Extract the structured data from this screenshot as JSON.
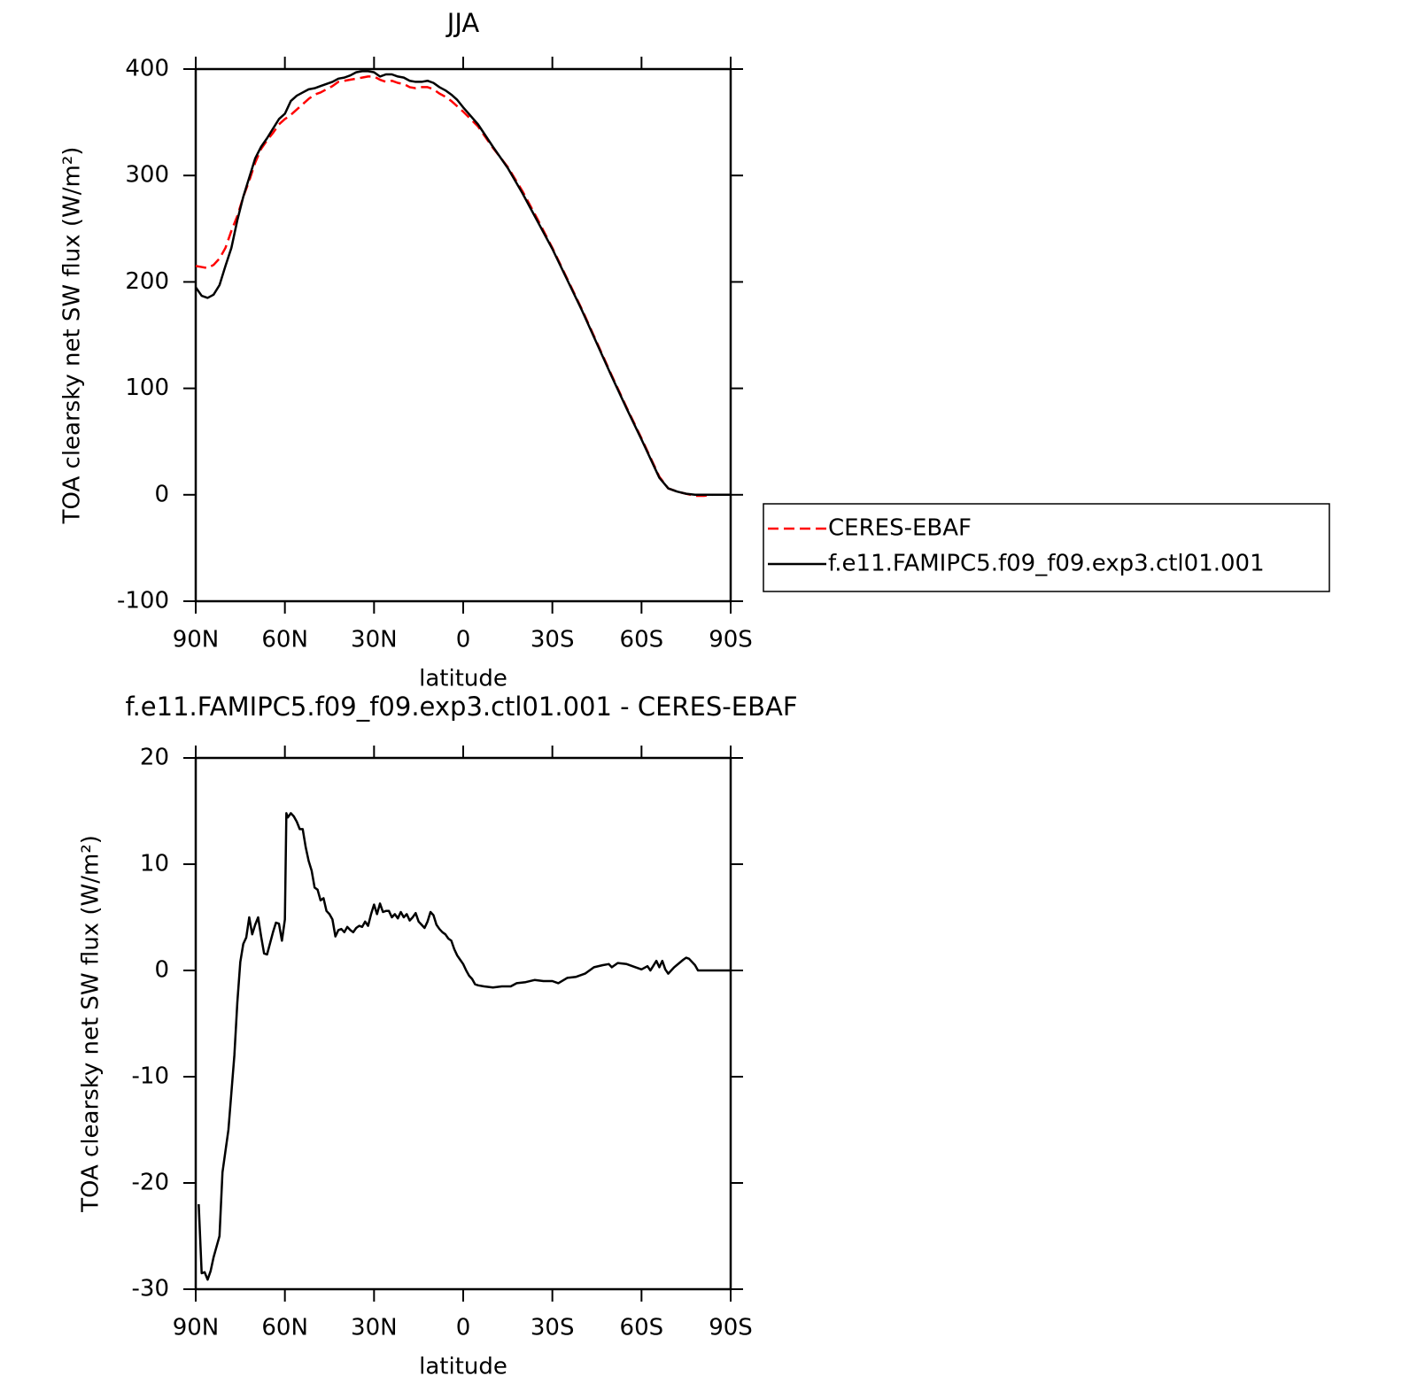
{
  "chart_data": [
    {
      "type": "line",
      "title": "JJA",
      "xlabel": "latitude",
      "ylabel": "TOA clearsky net SW flux (W/m²)",
      "x": [
        90,
        88,
        86,
        84,
        82,
        80,
        78,
        76,
        74,
        72,
        70,
        68,
        66,
        64,
        62,
        60,
        58,
        56,
        54,
        52,
        50,
        48,
        46,
        44,
        42,
        40,
        38,
        36,
        34,
        32,
        30,
        28,
        26,
        24,
        22,
        20,
        18,
        16,
        14,
        12,
        10,
        8,
        6,
        4,
        2,
        0,
        -5,
        -10,
        -15,
        -20,
        -25,
        -30,
        -35,
        -40,
        -45,
        -50,
        -55,
        -60,
        -63,
        -66,
        -69,
        -72,
        -75,
        -78,
        -81,
        -84,
        -87,
        -90
      ],
      "series": [
        {
          "name": "CERES-EBAF",
          "color": "#ff0000",
          "style": "dashed",
          "values": [
            215,
            214,
            213,
            216,
            222,
            232,
            248,
            262,
            280,
            295,
            312,
            325,
            333,
            340,
            348,
            353,
            357,
            362,
            367,
            372,
            376,
            378,
            381,
            384,
            388,
            389,
            390,
            391,
            392,
            393,
            393,
            390,
            388,
            389,
            387,
            386,
            383,
            382,
            383,
            383,
            381,
            377,
            374,
            370,
            365,
            360,
            346,
            326,
            308,
            285,
            259,
            232,
            203,
            174,
            143,
            112,
            82,
            53,
            35,
            17,
            6,
            3,
            1,
            -1,
            -1,
            0,
            0,
            0
          ]
        },
        {
          "name": "f.e11.FAMIPC5.f09_f09.exp3.ctl01.001",
          "color": "#000000",
          "style": "solid",
          "values": [
            195,
            187,
            185,
            188,
            197,
            215,
            232,
            258,
            280,
            298,
            316,
            327,
            335,
            344,
            353,
            358,
            370,
            375,
            378,
            381,
            382,
            384,
            386,
            388,
            391,
            392,
            394,
            397,
            398,
            398,
            397,
            393,
            395,
            395,
            393,
            392,
            389,
            388,
            388,
            389,
            387,
            383,
            380,
            376,
            371,
            364,
            348,
            327,
            307,
            283,
            257,
            231,
            202,
            173,
            142,
            111,
            81,
            52,
            34,
            16,
            6,
            3,
            1,
            0,
            0,
            0,
            0,
            0
          ]
        }
      ],
      "xlim": [
        90,
        -90
      ],
      "xticks": [
        {
          "value": 90,
          "label": "90N"
        },
        {
          "value": 60,
          "label": "60N"
        },
        {
          "value": 30,
          "label": "30N"
        },
        0,
        {
          "value": -30,
          "label": "30S"
        },
        {
          "value": -60,
          "label": "60S"
        },
        {
          "value": -90,
          "label": "90S"
        }
      ],
      "ylim": [
        -100,
        400
      ],
      "yticks": [
        -100,
        0,
        100,
        200,
        300,
        400
      ],
      "legend": "right"
    },
    {
      "type": "line",
      "title": "f.e11.FAMIPC5.f09_f09.exp3.ctl01.001 - CERES-EBAF",
      "xlabel": "latitude",
      "ylabel": "TOA clearsky net SW flux (W/m²)",
      "x": [
        89,
        88,
        87,
        86,
        85,
        84,
        82,
        81,
        79,
        77,
        76,
        75,
        74,
        73,
        72,
        71,
        70,
        69,
        68,
        67,
        66,
        64,
        63,
        62,
        61,
        60,
        59.5,
        59,
        58,
        57,
        56,
        55,
        54,
        53,
        52,
        51,
        50,
        49,
        48,
        47,
        46,
        45,
        44,
        43,
        42,
        41,
        40,
        39,
        38,
        37,
        36,
        35,
        34,
        33,
        32,
        31,
        30,
        29,
        28,
        27,
        26,
        25,
        24,
        23,
        22,
        21,
        20,
        19,
        18,
        17,
        16,
        15,
        14,
        13,
        12,
        11,
        10,
        9,
        8,
        7,
        6,
        5,
        4,
        3,
        2,
        1,
        0,
        -1,
        -2,
        -3,
        -4,
        -5,
        -7,
        -10,
        -13,
        -16,
        -18,
        -21,
        -24,
        -27,
        -30,
        -32,
        -35,
        -38,
        -41,
        -44,
        -47,
        -49,
        -50,
        -52,
        -55,
        -58,
        -60,
        -62,
        -63,
        -65,
        -66,
        -67,
        -68,
        -69,
        -71,
        -74,
        -75,
        -76,
        -78,
        -79,
        -82,
        -86,
        -90
      ],
      "values": [
        -22,
        -28.5,
        -28.4,
        -29.1,
        -28.3,
        -27,
        -25,
        -19,
        -15,
        -8,
        -3,
        0.8,
        2.5,
        3.1,
        5,
        3.4,
        4.3,
        5,
        3.2,
        1.6,
        1.5,
        3.6,
        4.5,
        4.4,
        2.8,
        4.8,
        14.8,
        14.4,
        14.8,
        14.5,
        14,
        13.3,
        13.3,
        11.6,
        10.3,
        9.4,
        7.8,
        7.6,
        6.6,
        6.8,
        5.6,
        5.3,
        4.8,
        3.2,
        3.8,
        3.9,
        3.6,
        4.1,
        3.8,
        3.6,
        4,
        4.2,
        4.1,
        4.6,
        4.2,
        5.3,
        6.2,
        5.3,
        6.3,
        5.5,
        5.6,
        5.6,
        5,
        5.3,
        4.9,
        5.5,
        5,
        5.3,
        4.7,
        5,
        5.4,
        4.6,
        4.3,
        4,
        4.6,
        5.5,
        5.2,
        4.3,
        3.9,
        3.6,
        3.4,
        3,
        2.8,
        2,
        1.4,
        1,
        0.6,
        0,
        -0.5,
        -0.8,
        -1.3,
        -1.4,
        -1.5,
        -1.6,
        -1.5,
        -1.5,
        -1.2,
        -1.1,
        -0.9,
        -1,
        -1,
        -1.2,
        -0.7,
        -0.6,
        -0.3,
        0.3,
        0.5,
        0.6,
        0.3,
        0.7,
        0.6,
        0.3,
        0.1,
        0.4,
        0,
        0.9,
        0.3,
        0.9,
        0.1,
        -0.3,
        0.3,
        1,
        1.2,
        1.1,
        0.5,
        0,
        0,
        0,
        0
      ],
      "color": "#000000",
      "xlim": [
        90,
        -90
      ],
      "xticks": [
        {
          "value": 90,
          "label": "90N"
        },
        {
          "value": 60,
          "label": "60N"
        },
        {
          "value": 30,
          "label": "30N"
        },
        0,
        {
          "value": -30,
          "label": "30S"
        },
        {
          "value": -60,
          "label": "60S"
        },
        {
          "value": -90,
          "label": "90S"
        }
      ],
      "ylim": [
        -30,
        20
      ],
      "yticks": [
        -30,
        -20,
        -10,
        0,
        10,
        20
      ]
    }
  ]
}
